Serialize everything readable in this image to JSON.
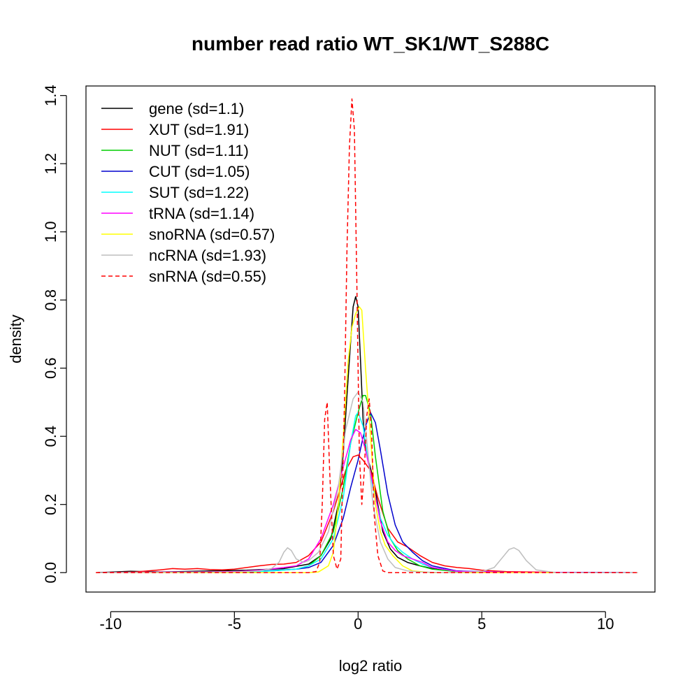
{
  "chart_data": {
    "type": "line",
    "title": "number read ratio WT_SK1/WT_S288C",
    "xlabel": "log2 ratio",
    "ylabel": "density",
    "xlim": [
      -11.0,
      12.0
    ],
    "ylim": [
      -0.057,
      1.428
    ],
    "xticks": [
      -10,
      -5,
      0,
      5,
      10
    ],
    "yticks": [
      0.0,
      0.2,
      0.4,
      0.6,
      0.8,
      1.0,
      1.2,
      1.4
    ],
    "xtick_labels": [
      "-10",
      "-5",
      "0",
      "5",
      "10"
    ],
    "ytick_labels": [
      "0.0",
      "0.2",
      "0.4",
      "0.6",
      "0.8",
      "1.0",
      "1.2",
      "1.4"
    ],
    "grid": false,
    "legend_position": "top-left",
    "series": [
      {
        "name": "gene (sd=1.1)",
        "color": "#000000",
        "dashed": false,
        "x": [
          -10.6,
          -9.2,
          -8,
          -6,
          -4.5,
          -3,
          -2,
          -1.5,
          -1.1,
          -0.8,
          -0.6,
          -0.45,
          -0.3,
          -0.2,
          -0.1,
          0.0,
          0.1,
          0.2,
          0.3,
          0.45,
          0.6,
          0.8,
          1.0,
          1.3,
          1.6,
          2.0,
          2.5,
          3.0,
          3.5,
          4.5,
          6,
          8,
          10,
          11.3
        ],
        "y": [
          0,
          0.004,
          0.002,
          0.005,
          0.007,
          0.012,
          0.025,
          0.05,
          0.1,
          0.2,
          0.35,
          0.52,
          0.68,
          0.78,
          0.81,
          0.78,
          0.62,
          0.45,
          0.36,
          0.32,
          0.28,
          0.2,
          0.12,
          0.07,
          0.045,
          0.03,
          0.02,
          0.012,
          0.007,
          0.003,
          0.001,
          0,
          0,
          0
        ]
      },
      {
        "name": "XUT (sd=1.91)",
        "color": "#ff0000",
        "dashed": false,
        "x": [
          -10.6,
          -9,
          -8,
          -7.5,
          -7,
          -6.5,
          -6,
          -5.5,
          -5,
          -4.5,
          -4,
          -3.5,
          -3,
          -2.5,
          -2,
          -1.5,
          -1,
          -0.5,
          -0.2,
          0.0,
          0.2,
          0.5,
          0.8,
          1.2,
          1.6,
          2.0,
          2.5,
          3.0,
          3.5,
          4.0,
          4.5,
          5.0,
          6,
          7,
          8,
          10,
          11.3
        ],
        "y": [
          0,
          0.002,
          0.008,
          0.012,
          0.01,
          0.012,
          0.009,
          0.008,
          0.01,
          0.015,
          0.02,
          0.024,
          0.025,
          0.03,
          0.05,
          0.09,
          0.18,
          0.3,
          0.34,
          0.345,
          0.33,
          0.3,
          0.22,
          0.13,
          0.09,
          0.075,
          0.05,
          0.03,
          0.02,
          0.015,
          0.012,
          0.007,
          0.003,
          0.002,
          0.001,
          0,
          0
        ]
      },
      {
        "name": "NUT (sd=1.11)",
        "color": "#00cd00",
        "dashed": false,
        "x": [
          -10.6,
          -5,
          -3.5,
          -2.5,
          -2,
          -1.5,
          -1.0,
          -0.6,
          -0.3,
          0.0,
          0.2,
          0.3,
          0.5,
          0.7,
          1.0,
          1.3,
          1.6,
          2.0,
          2.5,
          3.0,
          4.0,
          6,
          11.3
        ],
        "y": [
          0,
          0.002,
          0.005,
          0.01,
          0.02,
          0.05,
          0.12,
          0.25,
          0.38,
          0.47,
          0.52,
          0.52,
          0.47,
          0.34,
          0.18,
          0.1,
          0.065,
          0.04,
          0.02,
          0.01,
          0.003,
          0,
          0
        ]
      },
      {
        "name": "CUT (sd=1.05)",
        "color": "#0000cd",
        "dashed": false,
        "x": [
          -10.6,
          -5,
          -3.5,
          -2.5,
          -2.0,
          -1.5,
          -1.0,
          -0.6,
          -0.3,
          0.0,
          0.3,
          0.5,
          0.7,
          0.9,
          1.2,
          1.5,
          1.8,
          2.2,
          2.6,
          3.0,
          4.0,
          6,
          11.3
        ],
        "y": [
          0,
          0.002,
          0.006,
          0.01,
          0.015,
          0.03,
          0.08,
          0.16,
          0.25,
          0.33,
          0.43,
          0.47,
          0.44,
          0.36,
          0.23,
          0.14,
          0.09,
          0.06,
          0.035,
          0.02,
          0.005,
          0.001,
          0
        ]
      },
      {
        "name": "SUT (sd=1.22)",
        "color": "#00ffff",
        "dashed": false,
        "x": [
          -10.6,
          -5,
          -3.5,
          -2.5,
          -2.0,
          -1.5,
          -1.0,
          -0.6,
          -0.3,
          -0.1,
          0.0,
          0.2,
          0.4,
          0.6,
          0.9,
          1.2,
          1.5,
          1.8,
          2.2,
          2.6,
          3.0,
          4.0,
          6,
          11.3
        ],
        "y": [
          0,
          0.002,
          0.005,
          0.01,
          0.02,
          0.04,
          0.1,
          0.22,
          0.38,
          0.46,
          0.47,
          0.43,
          0.33,
          0.25,
          0.16,
          0.11,
          0.08,
          0.06,
          0.04,
          0.025,
          0.015,
          0.004,
          0.001,
          0
        ]
      },
      {
        "name": "tRNA (sd=1.14)",
        "color": "#ff00ff",
        "dashed": false,
        "x": [
          -10.6,
          -5,
          -4,
          -3.0,
          -2.5,
          -2.0,
          -1.5,
          -1.0,
          -0.6,
          -0.3,
          -0.1,
          0.1,
          0.3,
          0.6,
          0.9,
          1.2,
          1.5,
          1.8,
          2.2,
          2.6,
          3.0,
          4.0,
          6,
          11.3
        ],
        "y": [
          0,
          0.003,
          0.007,
          0.015,
          0.02,
          0.04,
          0.1,
          0.2,
          0.31,
          0.39,
          0.42,
          0.41,
          0.36,
          0.26,
          0.15,
          0.09,
          0.065,
          0.05,
          0.04,
          0.03,
          0.015,
          0.004,
          0.001,
          0
        ]
      },
      {
        "name": "snoRNA (sd=0.57)",
        "color": "#ffff00",
        "dashed": false,
        "x": [
          -10.6,
          -2,
          -1.6,
          -1.2,
          -1.0,
          -0.8,
          -0.6,
          -0.4,
          -0.25,
          -0.1,
          0.05,
          0.15,
          0.3,
          0.5,
          0.7,
          0.9,
          1.1,
          1.4,
          1.8,
          2.2,
          3,
          11.3
        ],
        "y": [
          0,
          0,
          0.002,
          0.02,
          0.06,
          0.2,
          0.4,
          0.62,
          0.72,
          0.76,
          0.78,
          0.77,
          0.6,
          0.4,
          0.2,
          0.12,
          0.08,
          0.05,
          0.02,
          0.005,
          0,
          0
        ]
      },
      {
        "name": "ncRNA (sd=1.93)",
        "color": "#bebebe",
        "dashed": false,
        "x": [
          -10.6,
          -5,
          -4,
          -3.5,
          -3.2,
          -3.0,
          -2.85,
          -2.7,
          -2.5,
          -2.2,
          -2.0,
          -1.6,
          -1.2,
          -0.8,
          -0.5,
          -0.2,
          0.0,
          0.2,
          0.4,
          0.6,
          0.9,
          1.2,
          1.5,
          2.0,
          2.5,
          3.5,
          5.0,
          5.5,
          5.9,
          6.1,
          6.3,
          6.5,
          6.8,
          7.2,
          8,
          11.3
        ],
        "y": [
          0,
          0.002,
          0.005,
          0.012,
          0.03,
          0.06,
          0.073,
          0.065,
          0.04,
          0.03,
          0.035,
          0.06,
          0.12,
          0.25,
          0.42,
          0.51,
          0.53,
          0.5,
          0.35,
          0.2,
          0.09,
          0.04,
          0.015,
          0.005,
          0.002,
          0,
          0.003,
          0.015,
          0.05,
          0.068,
          0.073,
          0.065,
          0.035,
          0.008,
          0,
          0
        ]
      },
      {
        "name": "snRNA (sd=0.55)",
        "color": "#ff0000",
        "dashed": true,
        "x": [
          -10.6,
          -2.0,
          -1.7,
          -1.55,
          -1.45,
          -1.35,
          -1.25,
          -1.15,
          -1.0,
          -0.85,
          -0.7,
          -0.55,
          -0.45,
          -0.35,
          -0.25,
          -0.15,
          -0.05,
          0.05,
          0.15,
          0.25,
          0.35,
          0.45,
          0.55,
          0.65,
          0.8,
          1.0,
          1.2,
          11.3
        ],
        "y": [
          0,
          0,
          0.003,
          0.03,
          0.2,
          0.45,
          0.5,
          0.3,
          0.05,
          0.01,
          0.04,
          0.5,
          0.95,
          1.25,
          1.39,
          1.3,
          0.85,
          0.35,
          0.2,
          0.3,
          0.46,
          0.51,
          0.4,
          0.17,
          0.05,
          0.005,
          0,
          0
        ]
      }
    ]
  }
}
